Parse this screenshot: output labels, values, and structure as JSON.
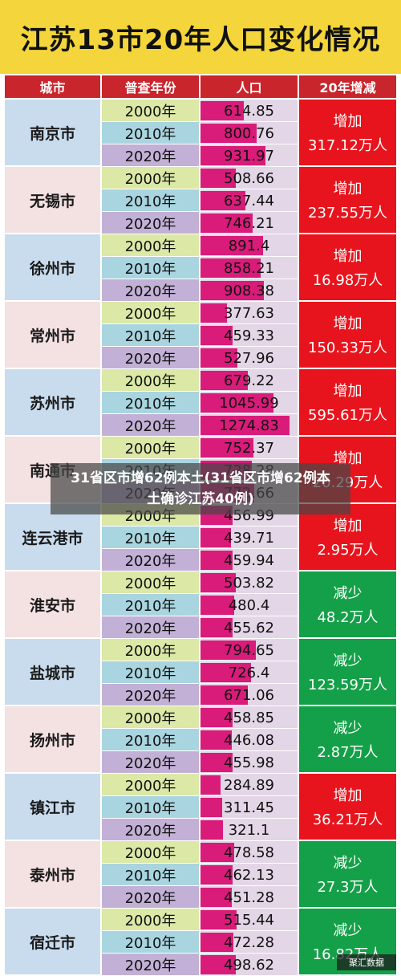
{
  "title": "江苏13市20年人口变化情况",
  "headers": {
    "city": "城市",
    "year": "普查年份",
    "population": "人口",
    "change": "20年增减"
  },
  "colors": {
    "title_bg": "#f4d53b",
    "header_bg": "#c9252c",
    "increase": "#e8141d",
    "decrease": "#14a048",
    "pop_bar": "#d91b7a",
    "year_2000": "#dbe8a6",
    "year_2010": "#a8d5e0",
    "year_2020": "#c2b0d6"
  },
  "chart_data": {
    "type": "table",
    "title": "江苏13市20年人口变化情况",
    "unit_label": "万人",
    "years": [
      "2000年",
      "2010年",
      "2020年"
    ],
    "bar_max": 1274.83,
    "rows": [
      {
        "city": "南京市",
        "pop": [
          "614.85",
          "800.76",
          "931.97"
        ],
        "values": [
          614.85,
          800.76,
          931.97
        ],
        "dir": "增加",
        "amount": "317.12万人",
        "trend": "increase"
      },
      {
        "city": "无锡市",
        "pop": [
          "508.66",
          "637.44",
          "746.21"
        ],
        "values": [
          508.66,
          637.44,
          746.21
        ],
        "dir": "增加",
        "amount": "237.55万人",
        "trend": "increase"
      },
      {
        "city": "徐州市",
        "pop": [
          "891.4",
          "858.21",
          "908.38"
        ],
        "values": [
          891.4,
          858.21,
          908.38
        ],
        "dir": "增加",
        "amount": "16.98万人",
        "trend": "increase"
      },
      {
        "city": "常州市",
        "pop": [
          "377.63",
          "459.33",
          "527.96"
        ],
        "values": [
          377.63,
          459.33,
          527.96
        ],
        "dir": "增加",
        "amount": "150.33万人",
        "trend": "increase"
      },
      {
        "city": "苏州市",
        "pop": [
          "679.22",
          "1045.99",
          "1274.83"
        ],
        "values": [
          679.22,
          1045.99,
          1274.83
        ],
        "dir": "增加",
        "amount": "595.61万人",
        "trend": "increase"
      },
      {
        "city": "南通市",
        "pop": [
          "752.37",
          "728.28",
          "772.66"
        ],
        "values": [
          752.37,
          728.28,
          772.66
        ],
        "dir": "增加",
        "amount": "20.29万人",
        "trend": "increase"
      },
      {
        "city": "连云港市",
        "pop": [
          "456.99",
          "439.71",
          "459.94"
        ],
        "values": [
          456.99,
          439.71,
          459.94
        ],
        "dir": "增加",
        "amount": "2.95万人",
        "trend": "increase"
      },
      {
        "city": "淮安市",
        "pop": [
          "503.82",
          "480.4",
          "455.62"
        ],
        "values": [
          503.82,
          480.4,
          455.62
        ],
        "dir": "减少",
        "amount": "48.2万人",
        "trend": "decrease"
      },
      {
        "city": "盐城市",
        "pop": [
          "794.65",
          "726.4",
          "671.06"
        ],
        "values": [
          794.65,
          726.4,
          671.06
        ],
        "dir": "减少",
        "amount": "123.59万人",
        "trend": "decrease"
      },
      {
        "city": "扬州市",
        "pop": [
          "458.85",
          "446.08",
          "455.98"
        ],
        "values": [
          458.85,
          446.08,
          455.98
        ],
        "dir": "减少",
        "amount": "2.87万人",
        "trend": "decrease"
      },
      {
        "city": "镇江市",
        "pop": [
          "284.89",
          "311.45",
          "321.1"
        ],
        "values": [
          284.89,
          311.45,
          321.1
        ],
        "dir": "增加",
        "amount": "36.21万人",
        "trend": "increase"
      },
      {
        "city": "泰州市",
        "pop": [
          "478.58",
          "462.13",
          "451.28"
        ],
        "values": [
          478.58,
          462.13,
          451.28
        ],
        "dir": "减少",
        "amount": "27.3万人",
        "trend": "decrease"
      },
      {
        "city": "宿迁市",
        "pop": [
          "515.44",
          "472.28",
          "498.62"
        ],
        "values": [
          515.44,
          472.28,
          498.62
        ],
        "dir": "减少",
        "amount": "16.82万人",
        "trend": "decrease"
      }
    ]
  },
  "overlay": {
    "headline": "31省区市增62例本土(31省区市增62例本土确诊江苏40例)"
  },
  "watermark": "聚汇数据"
}
